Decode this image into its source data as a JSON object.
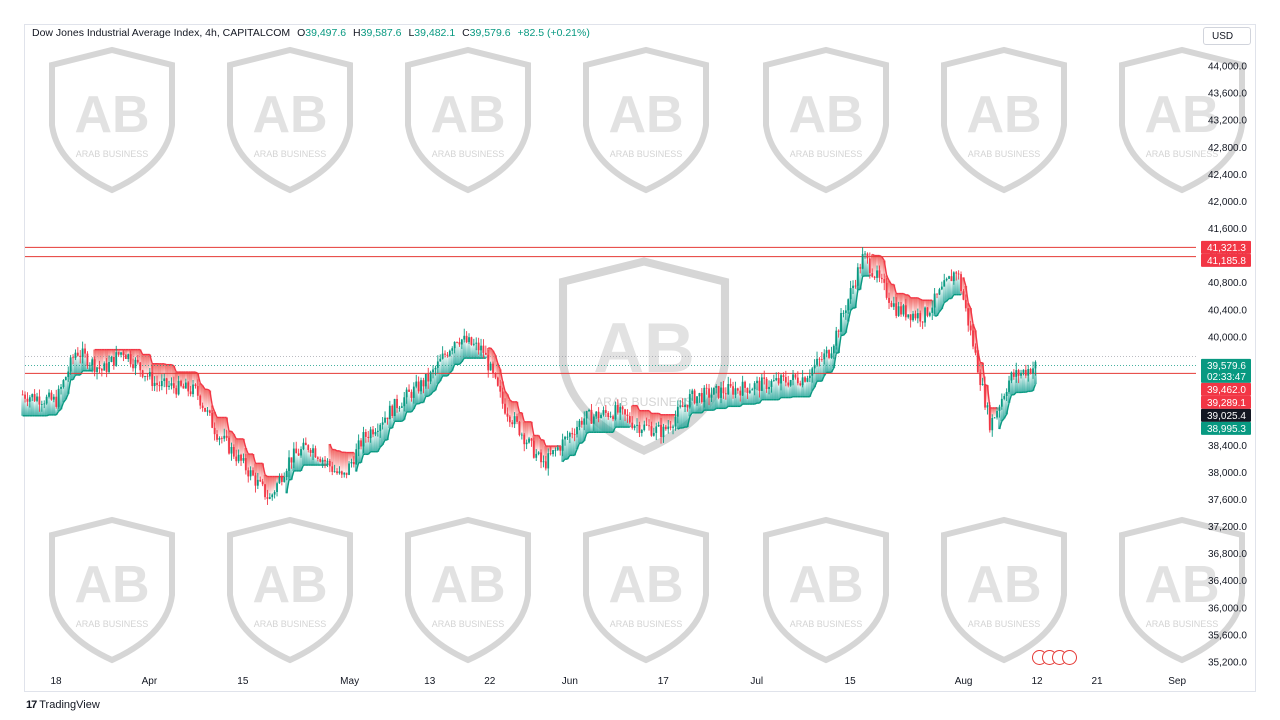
{
  "header": {
    "symbol": "Dow Jones Industrial Average Index, 4h, CAPITALCOM",
    "o_label": "O",
    "o_value": "39,497.6",
    "h_label": "H",
    "h_value": "39,587.6",
    "l_label": "L",
    "l_value": "39,482.1",
    "c_label": "C",
    "c_value": "39,579.6",
    "change": "+82.5 (+0.21%)"
  },
  "currency": "USD",
  "brand": {
    "logo": "17",
    "name": "TradingView"
  },
  "watermark": {
    "text": "ARAB BUSINESS",
    "monogram": "AB"
  },
  "colors": {
    "up": "#089981",
    "down": "#f23645",
    "bull_fill": "#26a69a",
    "bear_fill": "#ef5350",
    "hline": "#e53935",
    "axis_text": "#131722",
    "badge_dark": "#131722"
  },
  "chart_data": {
    "type": "candlestick",
    "title": "Dow Jones Industrial Average Index, 4h, CAPITALCOM",
    "ylim": [
      35000,
      44200
    ],
    "y_ticks": [
      "44,000.0",
      "43,600.0",
      "43,200.0",
      "42,800.0",
      "42,400.0",
      "42,000.0",
      "41,600.0",
      "41,200.0",
      "40,800.0",
      "40,400.0",
      "40,000.0",
      "39,600.0",
      "39,200.0",
      "38,800.0",
      "38,400.0",
      "38,000.0",
      "37,600.0",
      "37,200.0",
      "36,800.0",
      "36,400.0",
      "36,000.0",
      "35,600.0",
      "35,200.0"
    ],
    "x_ticks": [
      "18",
      "Apr",
      "15",
      "May",
      "13",
      "22",
      "Jun",
      "17",
      "Jul",
      "15",
      "Aug",
      "12",
      "21",
      "Sep"
    ],
    "price_path": [
      {
        "date": "Mar 13",
        "value": 39150
      },
      {
        "date": "Mar 18",
        "value": 39050
      },
      {
        "date": "Mar 21",
        "value": 39800
      },
      {
        "date": "Mar 25",
        "value": 39500
      },
      {
        "date": "Mar 28",
        "value": 39800
      },
      {
        "date": "Apr 2",
        "value": 39300
      },
      {
        "date": "Apr 8",
        "value": 39200
      },
      {
        "date": "Apr 11",
        "value": 38600
      },
      {
        "date": "Apr 16",
        "value": 38000
      },
      {
        "date": "Apr 19",
        "value": 37600
      },
      {
        "date": "Apr 22",
        "value": 38200
      },
      {
        "date": "Apr 25",
        "value": 38400
      },
      {
        "date": "Apr 30",
        "value": 37900
      },
      {
        "date": "May 3",
        "value": 38500
      },
      {
        "date": "May 8",
        "value": 39000
      },
      {
        "date": "May 13",
        "value": 39400
      },
      {
        "date": "May 17",
        "value": 40000
      },
      {
        "date": "May 21",
        "value": 39800
      },
      {
        "date": "May 24",
        "value": 39000
      },
      {
        "date": "May 30",
        "value": 38100
      },
      {
        "date": "Jun 5",
        "value": 38800
      },
      {
        "date": "Jun 10",
        "value": 38900
      },
      {
        "date": "Jun 13",
        "value": 38700
      },
      {
        "date": "Jun 17",
        "value": 38600
      },
      {
        "date": "Jun 21",
        "value": 39100
      },
      {
        "date": "Jun 26",
        "value": 39200
      },
      {
        "date": "Jul 2",
        "value": 39300
      },
      {
        "date": "Jul 8",
        "value": 39400
      },
      {
        "date": "Jul 12",
        "value": 39800
      },
      {
        "date": "Jul 17",
        "value": 41200
      },
      {
        "date": "Jul 22",
        "value": 40400
      },
      {
        "date": "Jul 26",
        "value": 40300
      },
      {
        "date": "Jul 31",
        "value": 41000
      },
      {
        "date": "Aug 5",
        "value": 38700
      },
      {
        "date": "Aug 8",
        "value": 39400
      },
      {
        "date": "Aug 12",
        "value": 39580
      }
    ],
    "horizontal_lines": [
      41321.3,
      41185.8,
      39462.0
    ],
    "price_labels": [
      {
        "value": 41321.3,
        "text": "41,321.3",
        "style": "red"
      },
      {
        "value": 41185.8,
        "text": "41,185.8",
        "style": "red"
      },
      {
        "value": 39579.6,
        "text": "39,579.6",
        "sub": "02:33:47",
        "style": "green"
      },
      {
        "value": 39462.0,
        "text": "39,462.0",
        "style": "red"
      },
      {
        "value": 39289.1,
        "text": "39,289.1",
        "style": "red"
      },
      {
        "value": 39025.4,
        "text": "39,025.4",
        "style": "dark"
      },
      {
        "value": 38995.3,
        "text": "38,995.3",
        "style": "green"
      }
    ]
  }
}
